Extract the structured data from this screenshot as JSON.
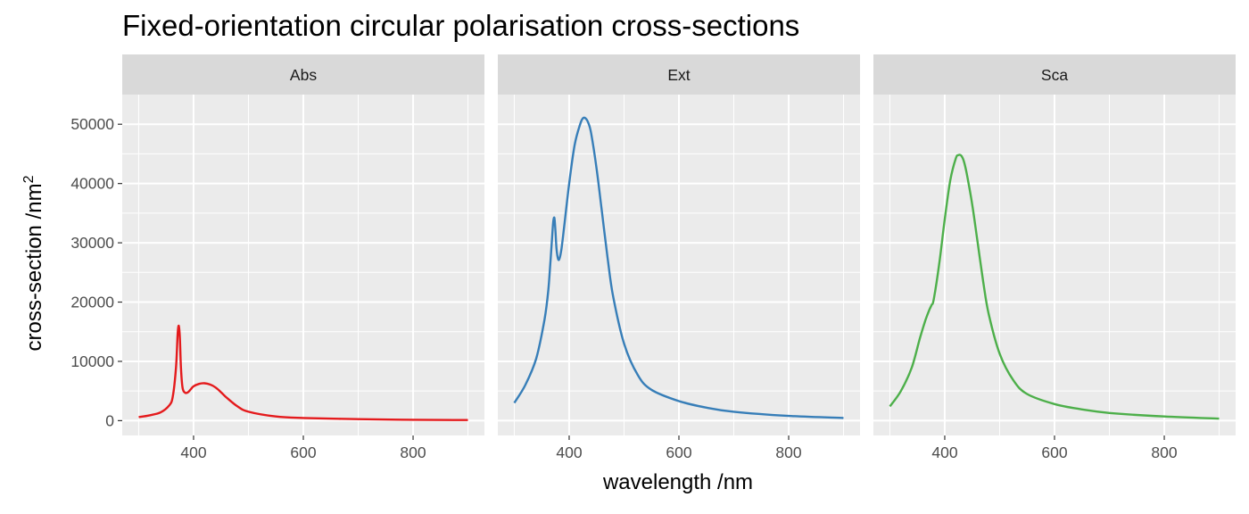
{
  "chart_data": {
    "type": "line",
    "title": "Fixed-orientation circular polarisation cross-sections",
    "xlabel": "wavelength /nm",
    "ylabel": "cross-section /nm",
    "ylabel_superscript": "2",
    "xlim": [
      270,
      930
    ],
    "ylim": [
      -2500,
      55000
    ],
    "x_ticks": [
      400,
      600,
      800
    ],
    "x_tick_labels": [
      "400",
      "600",
      "800"
    ],
    "y_ticks": [
      0,
      10000,
      20000,
      30000,
      40000,
      50000
    ],
    "y_tick_labels": [
      "0",
      "10000",
      "20000",
      "30000",
      "40000",
      "50000"
    ],
    "grid": true,
    "legend": "none",
    "panels": [
      {
        "label": "Abs",
        "color": "#E41A1C",
        "x": [
          300,
          320,
          340,
          355,
          362,
          368,
          371,
          373,
          375,
          377,
          380,
          385,
          390,
          395,
          400,
          410,
          420,
          430,
          440,
          450,
          460,
          480,
          500,
          550,
          600,
          700,
          800,
          900
        ],
        "y": [
          600,
          900,
          1400,
          2500,
          4000,
          9000,
          14500,
          16000,
          14000,
          9000,
          5500,
          4700,
          4800,
          5300,
          5800,
          6200,
          6300,
          6100,
          5600,
          4800,
          3900,
          2400,
          1500,
          700,
          450,
          250,
          150,
          100
        ]
      },
      {
        "label": "Ext",
        "color": "#377EB8",
        "x": [
          300,
          320,
          340,
          355,
          362,
          366,
          369,
          371,
          373,
          375,
          377,
          380,
          383,
          386,
          390,
          400,
          410,
          420,
          425,
          430,
          435,
          440,
          450,
          460,
          470,
          480,
          500,
          525,
          550,
          600,
          650,
          700,
          800,
          900
        ],
        "y": [
          3000,
          6000,
          10500,
          17000,
          22000,
          27000,
          31000,
          33500,
          34200,
          32000,
          29000,
          27200,
          27500,
          29000,
          32000,
          40000,
          46500,
          50000,
          51000,
          51000,
          50200,
          48500,
          42500,
          35000,
          27500,
          21000,
          13000,
          7700,
          5200,
          3300,
          2200,
          1500,
          800,
          450
        ]
      },
      {
        "label": "Sca",
        "color": "#4DAF4A",
        "x": [
          300,
          320,
          340,
          355,
          365,
          372,
          376,
          380,
          390,
          400,
          410,
          420,
          425,
          430,
          435,
          440,
          450,
          460,
          470,
          480,
          500,
          525,
          550,
          600,
          650,
          700,
          800,
          900
        ],
        "y": [
          2400,
          5000,
          9000,
          14000,
          17000,
          18700,
          19500,
          20500,
          26500,
          34000,
          40500,
          44200,
          44800,
          44700,
          43700,
          41700,
          36500,
          30000,
          23500,
          18000,
          11300,
          6800,
          4500,
          2800,
          1900,
          1300,
          700,
          350
        ]
      }
    ]
  }
}
